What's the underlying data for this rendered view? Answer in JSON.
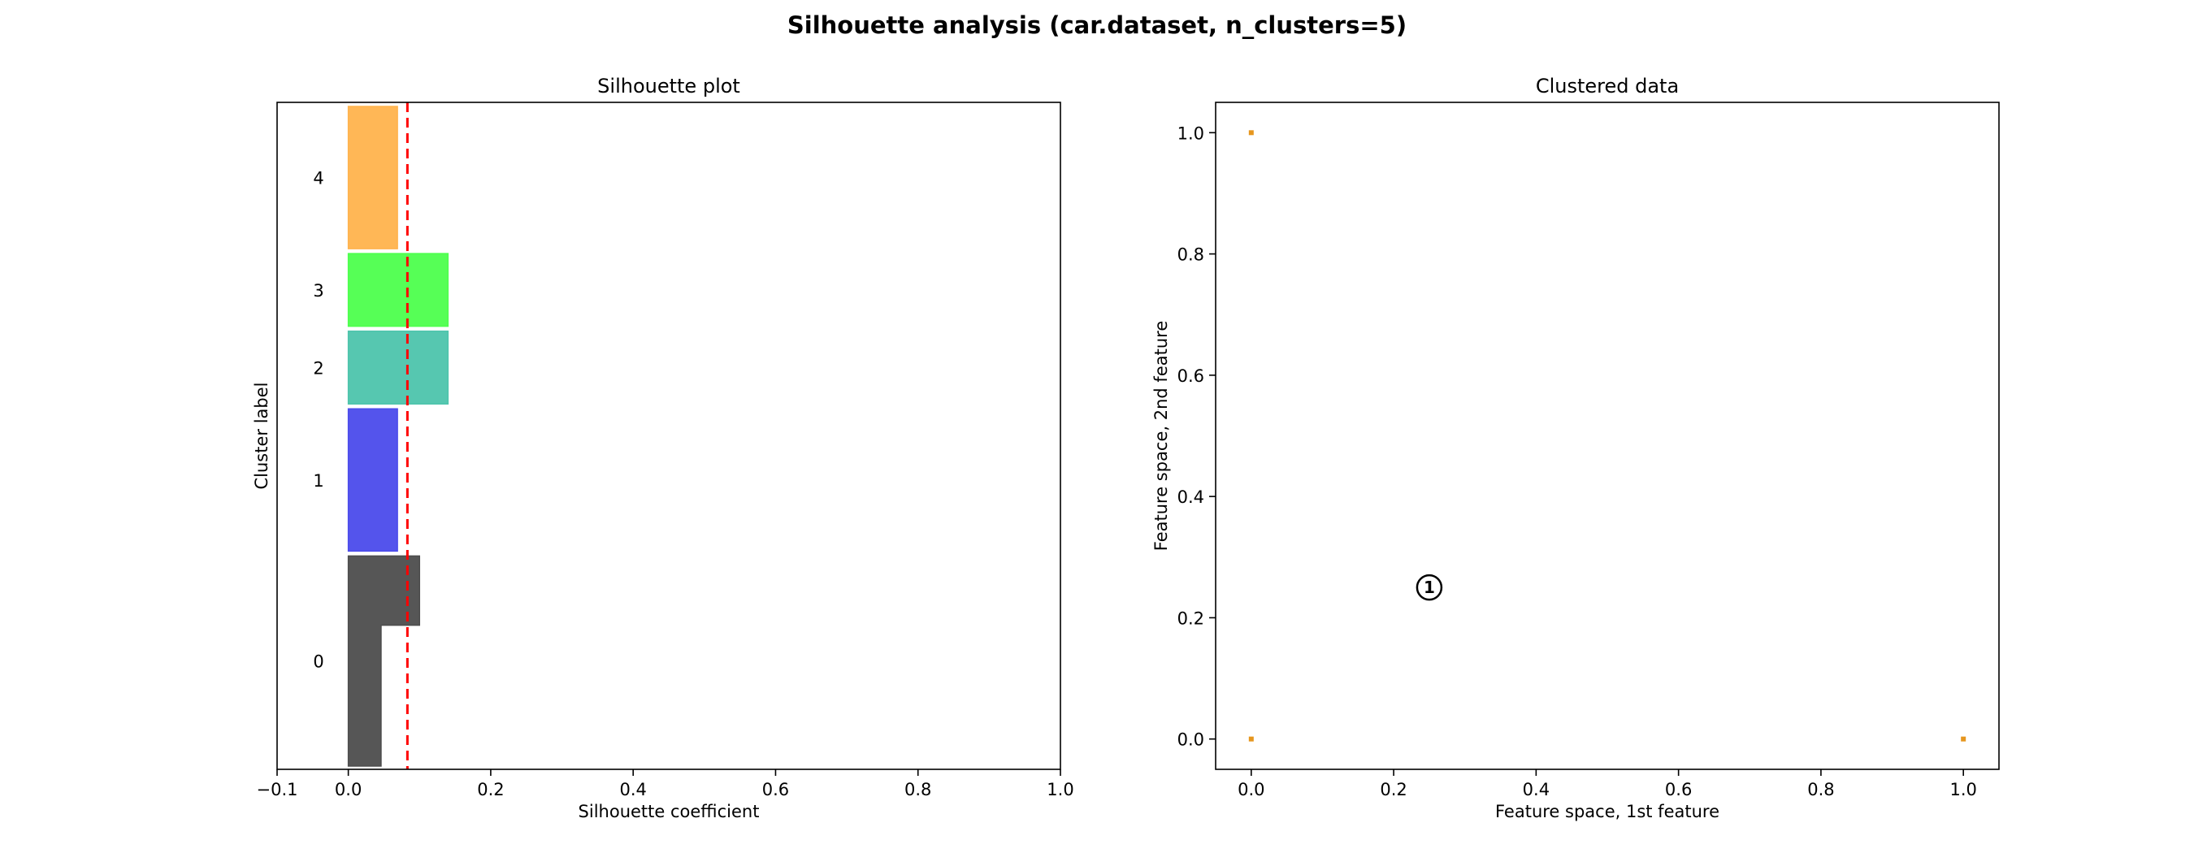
{
  "figure": {
    "title": "Silhouette analysis (car.dataset, n_clusters=5)"
  },
  "chart_data": [
    {
      "type": "bar",
      "title": "Silhouette plot",
      "xlabel": "Silhouette coefficient",
      "ylabel": "Cluster label",
      "xlim": [
        -0.1,
        1.0
      ],
      "xticks": [
        "−0.1",
        "0.0",
        "0.2",
        "0.4",
        "0.6",
        "0.8",
        "1.0"
      ],
      "average_silhouette": 0.083,
      "average_line_color": "#ff0000",
      "clusters": [
        {
          "label": "0",
          "color": "#4d4d4d",
          "segments": [
            {
              "value": 0.1,
              "share": 0.33
            },
            {
              "value": 0.046,
              "share": 0.67
            }
          ]
        },
        {
          "label": "1",
          "color": "#4b4beb",
          "segments": [
            {
              "value": 0.069,
              "share": 1
            }
          ]
        },
        {
          "label": "2",
          "color": "#4dc4ac",
          "segments": [
            {
              "value": 0.14,
              "share": 1
            }
          ]
        },
        {
          "label": "3",
          "color": "#4dff4d",
          "segments": [
            {
              "value": 0.14,
              "share": 1
            }
          ]
        },
        {
          "label": "4",
          "color": "#ffb34d",
          "segments": [
            {
              "value": 0.069,
              "share": 1
            }
          ]
        }
      ],
      "grid": false
    },
    {
      "type": "scatter",
      "title": "Clustered data",
      "xlabel": "Feature space, 1st feature",
      "ylabel": "Feature space, 2nd feature",
      "xlim": [
        -0.05,
        1.05
      ],
      "ylim": [
        -0.05,
        1.05
      ],
      "xticks": [
        "0.0",
        "0.2",
        "0.4",
        "0.6",
        "0.8",
        "1.0"
      ],
      "yticks": [
        "0.0",
        "0.2",
        "0.4",
        "0.6",
        "0.8",
        "1.0"
      ],
      "points": [
        {
          "x": 0.0,
          "y": 1.0,
          "color": "#e6961e"
        },
        {
          "x": 0.0,
          "y": 0.0,
          "color": "#e6961e"
        },
        {
          "x": 1.0,
          "y": 0.0,
          "color": "#e6961e"
        }
      ],
      "centers": [
        {
          "x": 0.25,
          "y": 0.25,
          "label": "1"
        }
      ],
      "grid": false
    }
  ]
}
